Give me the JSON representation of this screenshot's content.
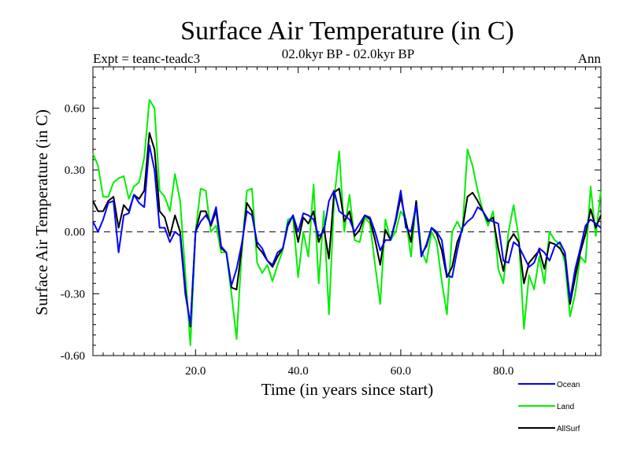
{
  "chart_data": {
    "type": "line",
    "title": "Surface Air Temperature (in C)",
    "subtitle": "02.0kyr BP - 02.0kyr BP",
    "left_label": "Expt = teanc-teadc3",
    "right_label": "Ann",
    "xlabel": "Time (in years since start)",
    "ylabel": "Surface Air Temperature (in C)",
    "xlim": [
      0,
      99
    ],
    "ylim": [
      -0.6,
      0.8
    ],
    "x_ticks": [
      20,
      40,
      60,
      80
    ],
    "x_tick_labels": [
      "20.0",
      "40.0",
      "60.0",
      "80.0"
    ],
    "y_ticks": [
      -0.6,
      -0.3,
      0.0,
      0.3,
      0.6
    ],
    "y_tick_labels": [
      "-0.60",
      "-0.30",
      "0.00",
      "0.30",
      "0.60"
    ],
    "reference_line": 0.0,
    "x": [
      0,
      1,
      2,
      3,
      4,
      5,
      6,
      7,
      8,
      9,
      10,
      11,
      12,
      13,
      14,
      15,
      16,
      17,
      18,
      19,
      20,
      21,
      22,
      23,
      24,
      25,
      26,
      27,
      28,
      29,
      30,
      31,
      32,
      33,
      34,
      35,
      36,
      37,
      38,
      39,
      40,
      41,
      42,
      43,
      44,
      45,
      46,
      47,
      48,
      49,
      50,
      51,
      52,
      53,
      54,
      55,
      56,
      57,
      58,
      59,
      60,
      61,
      62,
      63,
      64,
      65,
      66,
      67,
      68,
      69,
      70,
      71,
      72,
      73,
      74,
      75,
      76,
      77,
      78,
      79,
      80,
      81,
      82,
      83,
      84,
      85,
      86,
      87,
      88,
      89,
      90,
      91,
      92,
      93,
      94,
      95,
      96,
      97,
      98,
      99
    ],
    "series": [
      {
        "name": "Ocean",
        "color": "#0000ff",
        "values": [
          0.05,
          0.0,
          0.06,
          0.14,
          0.15,
          -0.1,
          0.08,
          0.09,
          0.18,
          0.14,
          0.12,
          0.42,
          0.3,
          0.02,
          0.02,
          -0.05,
          0.0,
          -0.02,
          -0.3,
          -0.45,
          0.0,
          0.05,
          0.08,
          0.04,
          0.12,
          -0.07,
          -0.1,
          -0.26,
          -0.18,
          -0.06,
          0.1,
          0.08,
          -0.05,
          -0.08,
          -0.14,
          -0.16,
          -0.1,
          -0.08,
          0.04,
          0.08,
          0.0,
          0.09,
          0.08,
          0.06,
          -0.02,
          0.0,
          0.15,
          0.2,
          0.1,
          0.08,
          0.06,
          0.0,
          0.04,
          0.08,
          0.07,
          0.0,
          -0.09,
          -0.04,
          -0.04,
          0.06,
          0.2,
          0.02,
          0.0,
          0.13,
          -0.12,
          -0.06,
          0.02,
          0.0,
          -0.04,
          -0.21,
          -0.22,
          -0.09,
          0.02,
          0.05,
          0.07,
          0.12,
          0.1,
          0.06,
          0.05,
          0.04,
          -0.14,
          -0.15,
          -0.05,
          -0.07,
          -0.12,
          -0.17,
          -0.15,
          -0.08,
          -0.1,
          -0.14,
          -0.07,
          -0.05,
          -0.1,
          -0.33,
          -0.18,
          -0.08,
          0.03,
          0.06,
          0.04,
          0.02
        ],
        "label": "Ocean"
      },
      {
        "name": "Land",
        "color": "#00ee00",
        "values": [
          0.38,
          0.32,
          0.17,
          0.17,
          0.24,
          0.26,
          0.27,
          0.16,
          0.22,
          0.24,
          0.36,
          0.64,
          0.6,
          0.2,
          0.17,
          0.1,
          0.28,
          0.15,
          -0.2,
          -0.55,
          0.0,
          0.21,
          0.2,
          0.0,
          0.03,
          -0.1,
          -0.1,
          -0.3,
          -0.52,
          -0.1,
          0.2,
          0.21,
          -0.15,
          -0.2,
          -0.16,
          -0.24,
          -0.16,
          -0.09,
          0.06,
          0.07,
          -0.22,
          0.0,
          -0.12,
          0.23,
          -0.25,
          0.1,
          -0.4,
          0.15,
          0.39,
          0.0,
          0.18,
          -0.04,
          -0.05,
          0.07,
          0.04,
          -0.16,
          -0.35,
          0.06,
          -0.04,
          0.0,
          0.1,
          0.06,
          -0.12,
          0.15,
          -0.09,
          -0.15,
          0.0,
          -0.05,
          -0.24,
          -0.4,
          0.0,
          0.05,
          0.0,
          0.4,
          0.32,
          0.2,
          0.1,
          0.03,
          0.1,
          -0.18,
          -0.25,
          0.0,
          0.13,
          -0.03,
          -0.47,
          -0.21,
          -0.28,
          -0.12,
          -0.25,
          0.0,
          -0.04,
          -0.06,
          -0.15,
          -0.41,
          -0.3,
          -0.12,
          -0.15,
          0.22,
          -0.02,
          0.2
        ],
        "label": "Land"
      },
      {
        "name": "AllSurf",
        "color": "#000000",
        "values": [
          0.15,
          0.1,
          0.1,
          0.15,
          0.17,
          0.02,
          0.13,
          0.1,
          0.18,
          0.16,
          0.2,
          0.48,
          0.4,
          0.1,
          0.07,
          -0.02,
          0.08,
          0.0,
          -0.28,
          -0.46,
          0.0,
          0.1,
          0.1,
          0.03,
          0.1,
          -0.08,
          -0.1,
          -0.27,
          -0.28,
          -0.08,
          0.14,
          0.1,
          -0.07,
          -0.1,
          -0.14,
          -0.17,
          -0.12,
          -0.08,
          0.03,
          0.08,
          -0.05,
          0.07,
          0.04,
          0.1,
          -0.05,
          0.02,
          -0.13,
          0.19,
          0.21,
          0.05,
          0.1,
          -0.02,
          0.01,
          0.08,
          0.06,
          -0.04,
          -0.16,
          0.01,
          -0.04,
          0.05,
          0.17,
          0.05,
          -0.05,
          0.15,
          -0.11,
          -0.07,
          0.02,
          -0.01,
          -0.09,
          -0.22,
          -0.17,
          -0.05,
          0.01,
          0.17,
          0.19,
          0.15,
          0.1,
          0.05,
          0.07,
          -0.08,
          -0.19,
          -0.05,
          -0.01,
          -0.05,
          -0.25,
          -0.15,
          -0.12,
          -0.09,
          -0.18,
          -0.05,
          -0.06,
          -0.08,
          -0.12,
          -0.35,
          -0.22,
          -0.1,
          -0.01,
          0.11,
          0.02,
          0.08
        ],
        "label": "AllSurf"
      }
    ],
    "legend_position": "bottom-right"
  }
}
